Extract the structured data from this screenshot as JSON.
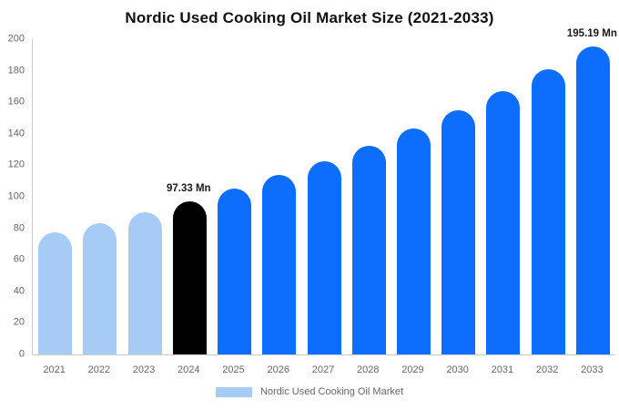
{
  "title": "Nordic Used Cooking Oil Market Size (2021-2033)",
  "chart_data": {
    "type": "bar",
    "title": "Nordic Used Cooking Oil Market Size (2021-2033)",
    "unit": "Mn",
    "categories": [
      "2021",
      "2022",
      "2023",
      "2024",
      "2025",
      "2026",
      "2027",
      "2028",
      "2029",
      "2030",
      "2031",
      "2032",
      "2033"
    ],
    "values": [
      77.2,
      83.4,
      90.1,
      97.33,
      105.2,
      113.6,
      122.8,
      132.6,
      143.3,
      154.8,
      167.3,
      180.7,
      195.19
    ],
    "bar_colors": [
      "#a6cbf5",
      "#a6cbf5",
      "#a6cbf5",
      "#000000",
      "#0d6efd",
      "#0d6efd",
      "#0d6efd",
      "#0d6efd",
      "#0d6efd",
      "#0d6efd",
      "#0d6efd",
      "#0d6efd",
      "#0d6efd"
    ],
    "data_labels": [
      {
        "category": "2024",
        "text": "97.33 Mn"
      },
      {
        "category": "2033",
        "text": "195.19 Mn"
      }
    ],
    "ylim": [
      0,
      200
    ],
    "ytick_step": 20,
    "ytick_labels": [
      "0",
      "20",
      "40",
      "60",
      "80",
      "100",
      "120",
      "140",
      "160",
      "180",
      "200"
    ],
    "grid": false,
    "legend": {
      "position": "bottom",
      "label": "Nordic Used Cooking Oil Market",
      "swatch_color": "#a6cbf5"
    }
  },
  "colors": {
    "bar_light": "#a6cbf5",
    "bar_primary": "#0d6efd",
    "bar_highlight": "#000000",
    "axis_line": "#cccccc",
    "tick_text": "#666666",
    "title_text": "#111111",
    "value_label_text": "#1a1a1a"
  }
}
